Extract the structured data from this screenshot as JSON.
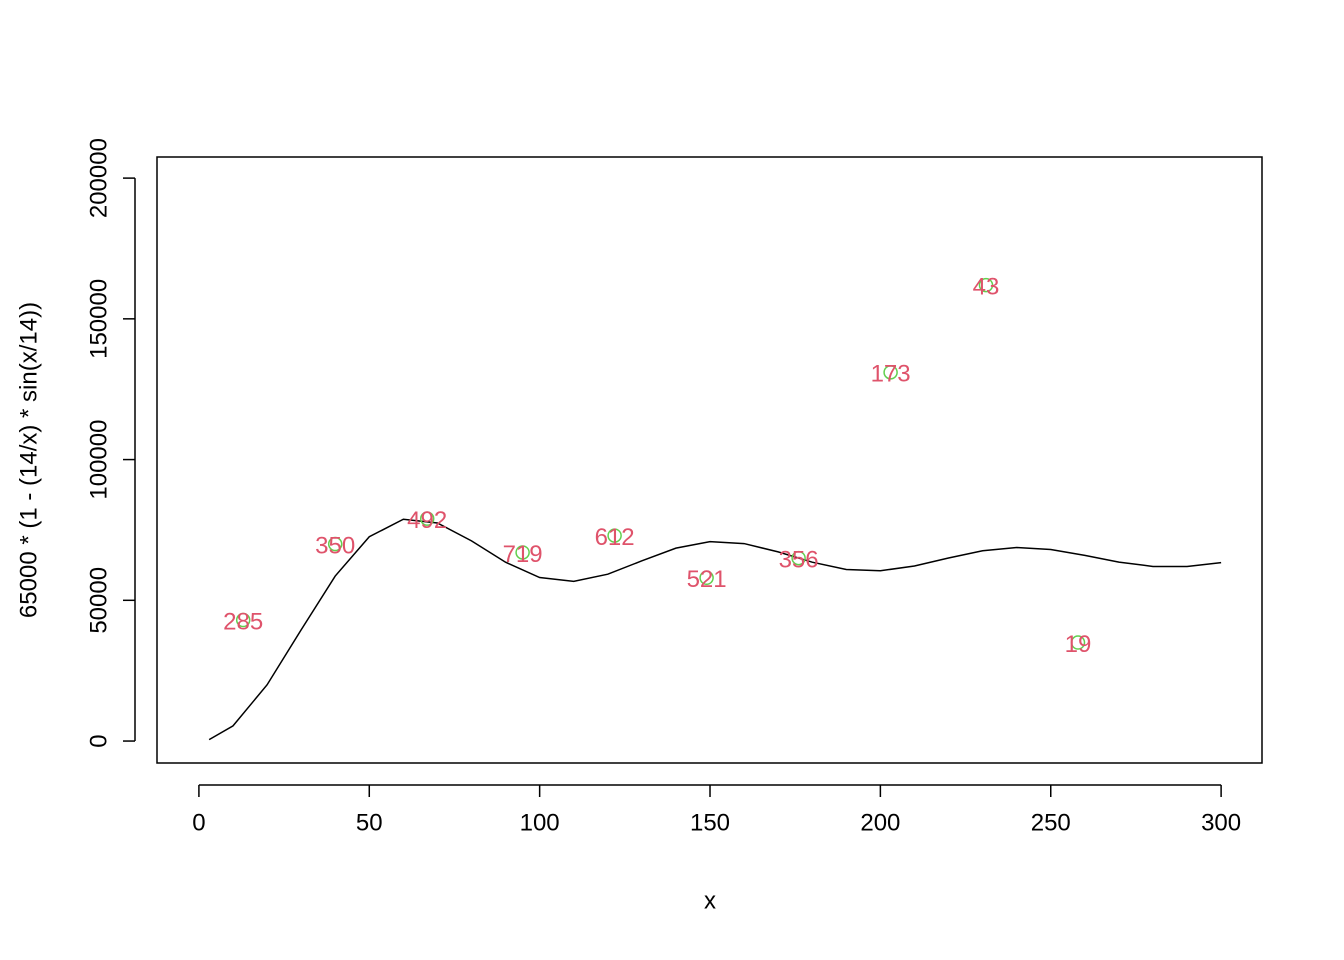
{
  "chart_data": {
    "type": "line",
    "xlabel": "x",
    "ylabel": "65000 * (1 - (14/x) * sin(x/14))",
    "xlim": [
      -12.3,
      312
    ],
    "ylim": [
      -7800,
      207500
    ],
    "xticks": [
      0,
      50,
      100,
      150,
      200,
      250,
      300
    ],
    "yticks": [
      0,
      50000,
      100000,
      150000,
      200000
    ],
    "series": [
      {
        "type": "line",
        "color": "#000000",
        "x": [
          3,
          10,
          20,
          30,
          40,
          50,
          60,
          70,
          80,
          90,
          100,
          110,
          120,
          130,
          140,
          150,
          160,
          170,
          180,
          190,
          200,
          210,
          220,
          230,
          240,
          250,
          260,
          270,
          280,
          290,
          300
        ],
        "values": [
          493,
          5386,
          19960,
          39502,
          58614,
          72584,
          78806,
          77466,
          71128,
          63535,
          58105,
          56727,
          59286,
          64029,
          68536,
          70829,
          70158,
          67200,
          63549,
          60954,
          60500,
          62182,
          65026,
          67610,
          68757,
          68048,
          65961,
          63576,
          62033,
          61996,
          63385
        ]
      },
      {
        "type": "scatter",
        "color": "#61D04F",
        "label_color": "#DF536B",
        "x": [
          13,
          40,
          67,
          95,
          122,
          149,
          176,
          203,
          231,
          258
        ],
        "values": [
          43000,
          70000,
          79000,
          67000,
          73000,
          58000,
          65000,
          131000,
          162000,
          35000
        ],
        "labels": [
          "285",
          "350",
          "492",
          "719",
          "612",
          "521",
          "356",
          "173",
          "43",
          "19"
        ]
      }
    ]
  }
}
